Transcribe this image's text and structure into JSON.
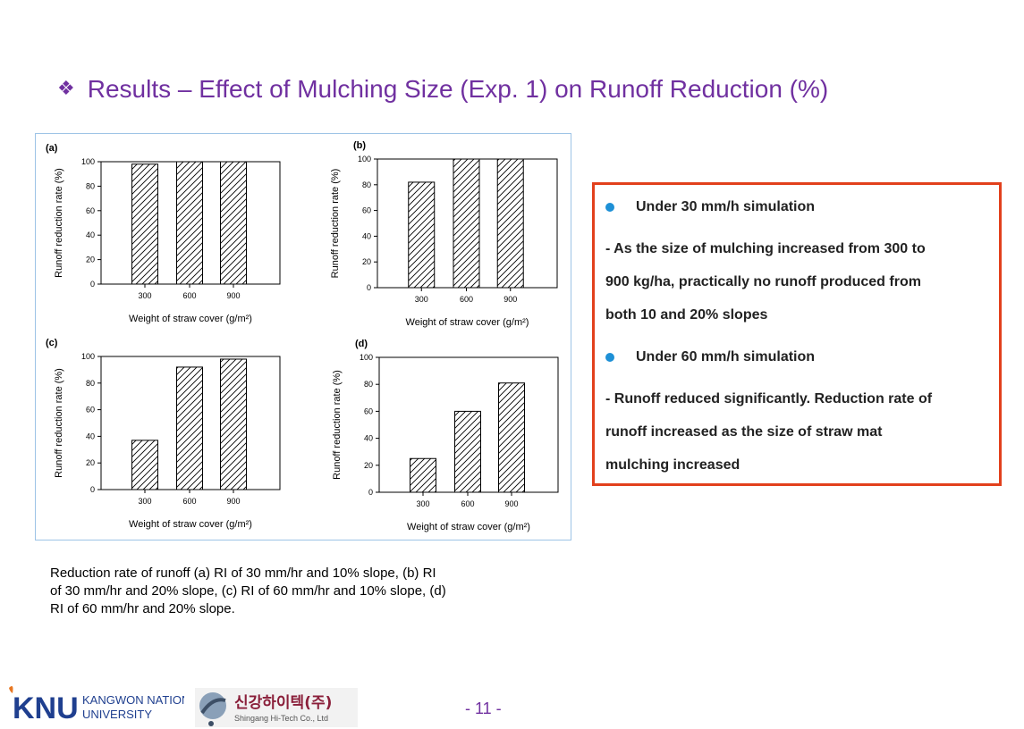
{
  "slide": {
    "title_bullet": "❖",
    "title": "Results – Effect of Mulching Size (Exp. 1) on Runoff Reduction (%)",
    "page_number": "- 11 -"
  },
  "caption": {
    "lines": [
      "Reduction rate of runoff (a) RI of 30 mm/hr and 10% slope, (b) RI",
      "of 30 mm/hr and 20% slope, (c) RI of 60 mm/hr and 10% slope, (d)",
      "RI of 60 mm/hr and 20% slope."
    ]
  },
  "textbox": {
    "bullet1": "Under 30 mm/h simulation",
    "text1_lines": [
      " - As the size of mulching increased from 300 to",
      "900 kg/ha, practically no runoff produced from",
      "both 10 and 20% slopes"
    ],
    "bullet2": "Under 60 mm/h simulation",
    "text2_lines": [
      "- Runoff reduced significantly. Reduction rate of",
      "runoff increased as the size of straw mat",
      "mulching increased"
    ]
  },
  "logos": {
    "knu_mark": "KNU",
    "knu_line1": "KANGWON NATIONAL",
    "knu_line2": "UNIVERSITY",
    "sg_korean": "신강하이텍(주)",
    "sg_english": "Shingang Hi-Tech Co., Ltd"
  },
  "colors": {
    "title": "#7030a0",
    "bullet": "#1e90d6",
    "textbox_border": "#e2401c",
    "figure_border": "#9dc3e6"
  },
  "chart_data": [
    {
      "type": "bar",
      "panel_label": "(a)",
      "categories": [
        "300",
        "600",
        "900"
      ],
      "values": [
        98,
        100,
        100
      ],
      "xlabel": "Weight of straw cover (g/m²)",
      "ylabel": "Runoff reduction rate (%)",
      "ylim": [
        0,
        100
      ],
      "yticks": [
        "0",
        "20",
        "40",
        "60",
        "80",
        "100"
      ],
      "pattern": "diagonal-hatch"
    },
    {
      "type": "bar",
      "panel_label": "(b)",
      "categories": [
        "300",
        "600",
        "900"
      ],
      "values": [
        82,
        100,
        100
      ],
      "xlabel": "Weight of straw cover (g/m²)",
      "ylabel": "Runoff reduction rate (%)",
      "ylim": [
        0,
        100
      ],
      "yticks": [
        "0",
        "20",
        "40",
        "60",
        "80",
        "100"
      ],
      "pattern": "diagonal-hatch"
    },
    {
      "type": "bar",
      "panel_label": "(c)",
      "categories": [
        "300",
        "600",
        "900"
      ],
      "values": [
        37,
        92,
        98
      ],
      "xlabel": "Weight of straw cover (g/m²)",
      "ylabel": "Runoff reduction rate (%)",
      "ylim": [
        0,
        100
      ],
      "yticks": [
        "0",
        "20",
        "40",
        "60",
        "80",
        "100"
      ],
      "pattern": "diagonal-hatch"
    },
    {
      "type": "bar",
      "panel_label": "(d)",
      "categories": [
        "300",
        "600",
        "900"
      ],
      "values": [
        25,
        60,
        81
      ],
      "xlabel": "Weight of straw cover (g/m²)",
      "ylabel": "Runoff reduction rate (%)",
      "ylim": [
        0,
        100
      ],
      "yticks": [
        "0",
        "20",
        "40",
        "60",
        "80",
        "100"
      ],
      "pattern": "diagonal-hatch"
    }
  ]
}
